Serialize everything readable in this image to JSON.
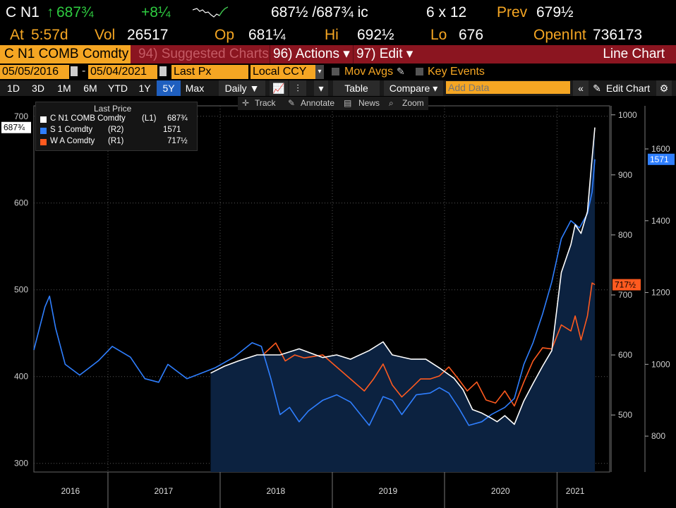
{
  "quote": {
    "ticker": "C N1",
    "last": "687¾",
    "change": "+8¼",
    "bid_ask": "687½ /687¾ ic",
    "size": "6 x 12",
    "prev_label": "Prev",
    "prev": "679½",
    "at_label": "At",
    "at": "5:57d",
    "vol_label": "Vol",
    "vol": "26517",
    "op_label": "Op",
    "op": "681¼",
    "hi_label": "Hi",
    "hi": "692½",
    "lo_label": "Lo",
    "lo": "676",
    "oi_label": "OpenInt",
    "oi": "736173"
  },
  "menu": {
    "security": "C N1 COMB Comdty",
    "suggested": "94) Suggested Charts",
    "actions": "96) Actions ▾",
    "edit": "97) Edit ▾",
    "chart_type": "Line Chart"
  },
  "controls": {
    "start_date": "05/05/2016",
    "end_date": "05/04/2021",
    "field": "Last Px",
    "currency": "Local CCY",
    "mov_avgs": "Mov Avgs",
    "key_events": "Key Events",
    "periods": [
      "1D",
      "3D",
      "1M",
      "6M",
      "YTD",
      "1Y",
      "5Y",
      "Max"
    ],
    "active_period": "5Y",
    "frequency": "Daily ▼",
    "table": "Table",
    "compare": "Compare ▾",
    "add_data_placeholder": "Add Data",
    "edit_chart": "Edit Chart"
  },
  "tools": {
    "track": "Track",
    "annotate": "Annotate",
    "news": "News",
    "zoom": "Zoom"
  },
  "colors": {
    "corn": "#ffffff",
    "soy": "#2f7fff",
    "wheat": "#ff5a1f",
    "area": "#0c2240",
    "accent": "#f5a623",
    "menu_bg": "#8b1520"
  },
  "chart_data": {
    "type": "line",
    "legend_title": "Last Price",
    "legend_placement": "top-left",
    "grid": true,
    "x_labels": [
      "2016",
      "2017",
      "2018",
      "2019",
      "2020",
      "2021"
    ],
    "x_range": [
      "2016-05-05",
      "2021-05-04"
    ],
    "axes": {
      "L1": {
        "ticks": [
          300,
          400,
          500,
          600,
          700
        ],
        "range": [
          290,
          712
        ]
      },
      "R1": {
        "ticks": [
          500,
          600,
          700,
          800,
          900,
          1000
        ],
        "range": [
          405,
          1015
        ]
      },
      "R2": {
        "ticks": [
          800,
          1000,
          1200,
          1400,
          1600
        ],
        "range": [
          700,
          1720
        ]
      }
    },
    "series": [
      {
        "name": "C N1 COMB Comdty",
        "axis": "L1",
        "axis_label": "(L1)",
        "last_label": "687¾",
        "points": [
          [
            "2017-12-01",
            404
          ],
          [
            "2018-01-15",
            412
          ],
          [
            "2018-03-01",
            418
          ],
          [
            "2018-05-01",
            425
          ],
          [
            "2018-07-15",
            425
          ],
          [
            "2018-09-15",
            432
          ],
          [
            "2018-12-01",
            422
          ],
          [
            "2019-01-15",
            425
          ],
          [
            "2019-03-01",
            420
          ],
          [
            "2019-05-01",
            430
          ],
          [
            "2019-06-15",
            440
          ],
          [
            "2019-07-15",
            425
          ],
          [
            "2019-09-15",
            420
          ],
          [
            "2019-11-01",
            420
          ],
          [
            "2019-12-15",
            410
          ],
          [
            "2020-02-01",
            398
          ],
          [
            "2020-03-01",
            385
          ],
          [
            "2020-04-01",
            362
          ],
          [
            "2020-05-01",
            358
          ],
          [
            "2020-06-01",
            352
          ],
          [
            "2020-06-20",
            348
          ],
          [
            "2020-07-15",
            355
          ],
          [
            "2020-08-15",
            345
          ],
          [
            "2020-09-15",
            372
          ],
          [
            "2020-10-15",
            392
          ],
          [
            "2020-11-15",
            412
          ],
          [
            "2020-12-15",
            430
          ],
          [
            "2021-01-15",
            520
          ],
          [
            "2021-02-15",
            552
          ],
          [
            "2021-03-01",
            575
          ],
          [
            "2021-03-20",
            565
          ],
          [
            "2021-04-10",
            590
          ],
          [
            "2021-04-22",
            640
          ],
          [
            "2021-05-04",
            687
          ]
        ]
      },
      {
        "name": "S 1 Comdty",
        "axis": "R2",
        "axis_label": "(R2)",
        "last_label": "1571",
        "points": [
          [
            "2016-05-05",
            1040
          ],
          [
            "2016-06-10",
            1160
          ],
          [
            "2016-06-25",
            1190
          ],
          [
            "2016-07-15",
            1100
          ],
          [
            "2016-08-15",
            1000
          ],
          [
            "2016-10-01",
            970
          ],
          [
            "2016-12-01",
            1010
          ],
          [
            "2017-01-15",
            1050
          ],
          [
            "2017-03-15",
            1020
          ],
          [
            "2017-05-01",
            960
          ],
          [
            "2017-06-15",
            950
          ],
          [
            "2017-07-15",
            1000
          ],
          [
            "2017-09-15",
            960
          ],
          [
            "2017-11-15",
            980
          ],
          [
            "2017-12-15",
            990
          ],
          [
            "2018-02-15",
            1020
          ],
          [
            "2018-04-15",
            1060
          ],
          [
            "2018-05-15",
            1050
          ],
          [
            "2018-06-15",
            960
          ],
          [
            "2018-07-15",
            860
          ],
          [
            "2018-08-15",
            880
          ],
          [
            "2018-09-15",
            840
          ],
          [
            "2018-10-15",
            870
          ],
          [
            "2018-12-01",
            900
          ],
          [
            "2019-01-15",
            915
          ],
          [
            "2019-03-01",
            895
          ],
          [
            "2019-05-01",
            830
          ],
          [
            "2019-06-15",
            910
          ],
          [
            "2019-07-15",
            900
          ],
          [
            "2019-08-15",
            860
          ],
          [
            "2019-10-01",
            915
          ],
          [
            "2019-11-15",
            920
          ],
          [
            "2019-12-15",
            935
          ],
          [
            "2020-01-15",
            920
          ],
          [
            "2020-02-15",
            880
          ],
          [
            "2020-03-20",
            830
          ],
          [
            "2020-05-01",
            840
          ],
          [
            "2020-06-01",
            860
          ],
          [
            "2020-07-15",
            880
          ],
          [
            "2020-08-15",
            905
          ],
          [
            "2020-09-15",
            1000
          ],
          [
            "2020-10-15",
            1060
          ],
          [
            "2020-11-15",
            1140
          ],
          [
            "2020-12-15",
            1230
          ],
          [
            "2021-01-15",
            1350
          ],
          [
            "2021-02-15",
            1400
          ],
          [
            "2021-03-15",
            1380
          ],
          [
            "2021-04-10",
            1420
          ],
          [
            "2021-04-25",
            1480
          ],
          [
            "2021-05-04",
            1571
          ]
        ]
      },
      {
        "name": "W A Comdty",
        "axis": "R1",
        "axis_label": "(R1)",
        "last_label": "717½",
        "points": [
          [
            "2018-05-20",
            600
          ],
          [
            "2018-07-01",
            620
          ],
          [
            "2018-08-01",
            590
          ],
          [
            "2018-09-01",
            600
          ],
          [
            "2018-10-01",
            595
          ],
          [
            "2018-12-01",
            600
          ],
          [
            "2019-01-15",
            580
          ],
          [
            "2019-03-01",
            560
          ],
          [
            "2019-04-15",
            540
          ],
          [
            "2019-05-15",
            560
          ],
          [
            "2019-06-15",
            585
          ],
          [
            "2019-07-15",
            550
          ],
          [
            "2019-08-15",
            530
          ],
          [
            "2019-09-15",
            545
          ],
          [
            "2019-10-15",
            560
          ],
          [
            "2019-11-15",
            560
          ],
          [
            "2019-12-15",
            565
          ],
          [
            "2020-01-15",
            580
          ],
          [
            "2020-02-15",
            560
          ],
          [
            "2020-03-15",
            540
          ],
          [
            "2020-04-15",
            555
          ],
          [
            "2020-05-15",
            525
          ],
          [
            "2020-06-15",
            520
          ],
          [
            "2020-07-15",
            540
          ],
          [
            "2020-08-15",
            515
          ],
          [
            "2020-09-15",
            555
          ],
          [
            "2020-10-15",
            590
          ],
          [
            "2020-11-15",
            612
          ],
          [
            "2020-12-15",
            610
          ],
          [
            "2021-01-15",
            650
          ],
          [
            "2021-02-15",
            640
          ],
          [
            "2021-03-01",
            665
          ],
          [
            "2021-03-20",
            625
          ],
          [
            "2021-04-10",
            665
          ],
          [
            "2021-04-25",
            720
          ],
          [
            "2021-05-04",
            717
          ]
        ]
      }
    ]
  }
}
